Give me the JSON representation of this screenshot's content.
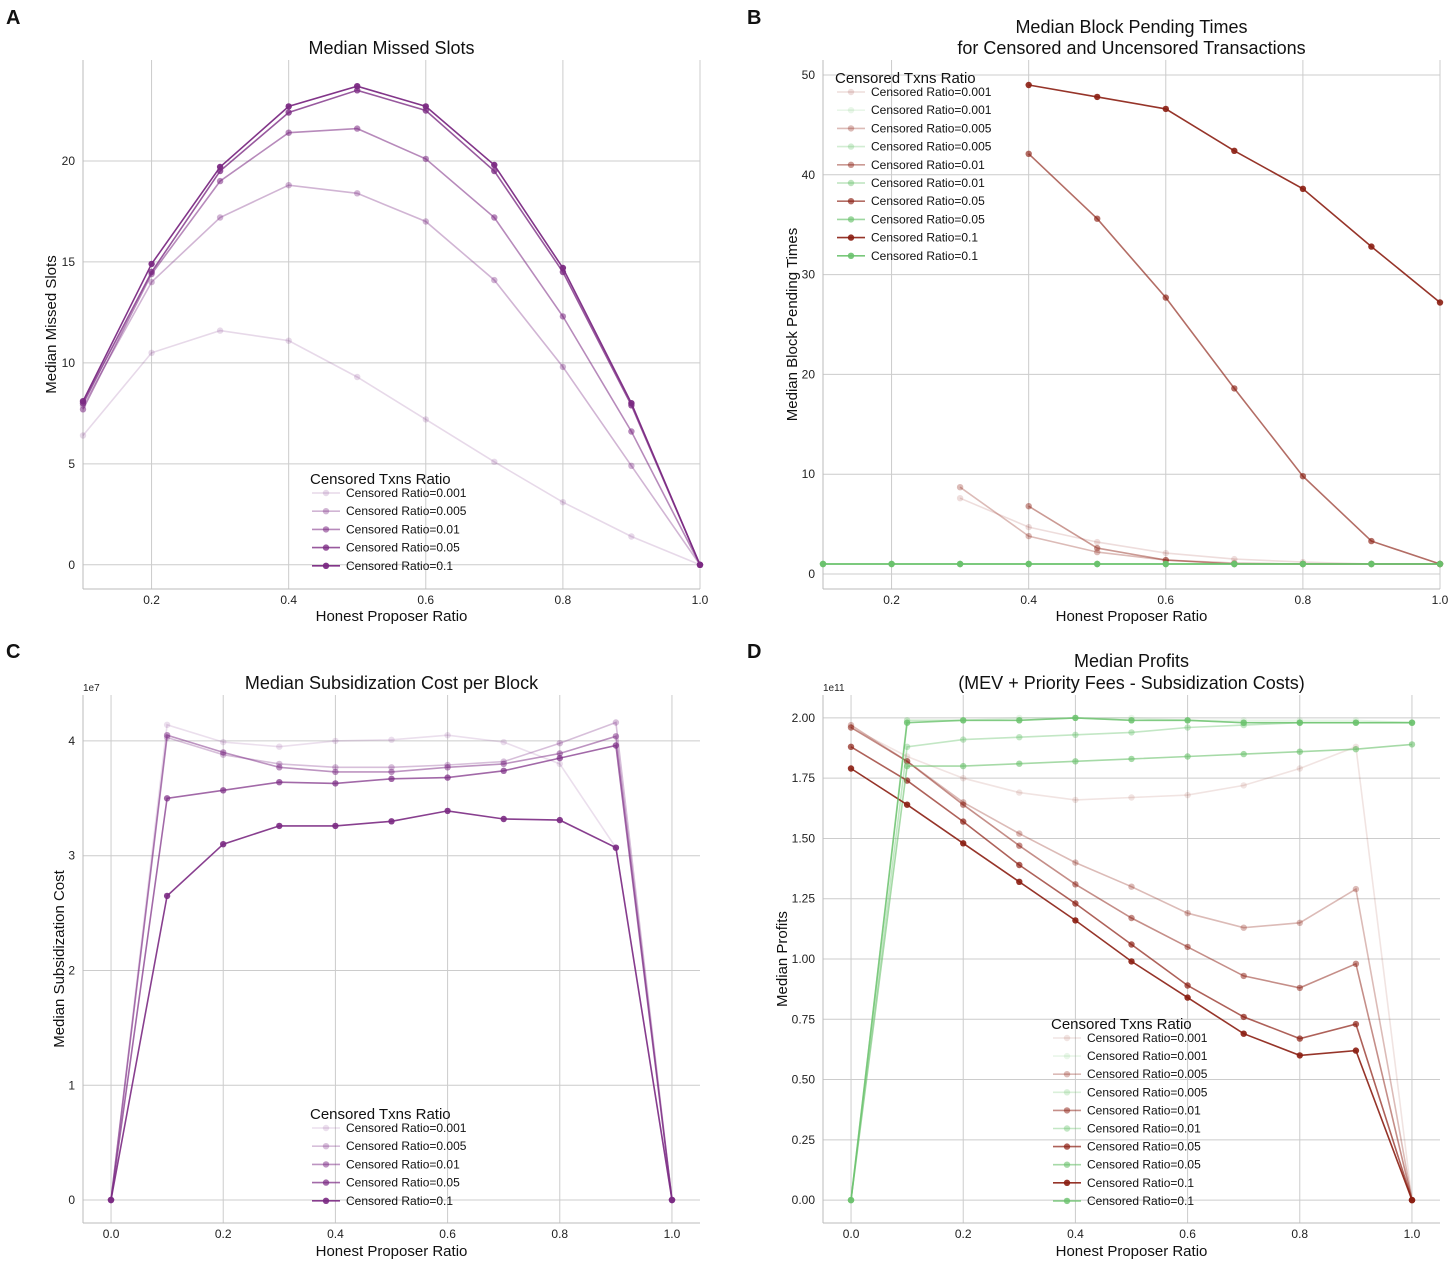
{
  "colors": {
    "purple": "#7b2a83",
    "red": "#8b1e12",
    "green": "#6ac26d"
  },
  "chart_data": [
    {
      "panel": "A",
      "type": "line",
      "title": [
        "Median Missed Slots"
      ],
      "xlabel": "Honest Proposer Ratio",
      "ylabel": "Median Missed Slots",
      "xlim": [
        0.1,
        1.0
      ],
      "ylim": [
        -1.2,
        25.0
      ],
      "xticks": [
        0.2,
        0.4,
        0.6,
        0.8,
        1.0
      ],
      "xtick_labels": [
        "0.2",
        "0.4",
        "0.6",
        "0.8",
        "1.0"
      ],
      "yticks": [
        0,
        5,
        10,
        15,
        20
      ],
      "ytick_labels": [
        "0",
        "5",
        "10",
        "15",
        "20"
      ],
      "exponent_label": "",
      "grid": true,
      "legend": {
        "title": "Censored Txns Ratio",
        "placement": "lower-center"
      },
      "x": [
        0.1,
        0.2,
        0.3,
        0.4,
        0.5,
        0.6,
        0.7,
        0.8,
        0.9,
        1.0
      ],
      "series": [
        {
          "name": "Censored Ratio=0.001",
          "color": "#7b2a83",
          "opacity": 0.18,
          "values": [
            6.4,
            10.5,
            11.6,
            11.1,
            9.3,
            7.2,
            5.1,
            3.1,
            1.4,
            0.0
          ]
        },
        {
          "name": "Censored Ratio=0.005",
          "color": "#7b2a83",
          "opacity": 0.35,
          "values": [
            7.9,
            14.0,
            17.2,
            18.8,
            18.4,
            17.0,
            14.1,
            9.8,
            4.9,
            0.0
          ]
        },
        {
          "name": "Censored Ratio=0.01",
          "color": "#7b2a83",
          "opacity": 0.55,
          "values": [
            7.7,
            14.4,
            19.0,
            21.4,
            21.6,
            20.1,
            17.2,
            12.3,
            6.6,
            0.0
          ]
        },
        {
          "name": "Censored Ratio=0.05",
          "color": "#7b2a83",
          "opacity": 0.78,
          "values": [
            8.0,
            14.5,
            19.5,
            22.4,
            23.5,
            22.5,
            19.5,
            14.5,
            7.9,
            0.0
          ]
        },
        {
          "name": "Censored Ratio=0.1",
          "color": "#7b2a83",
          "opacity": 0.95,
          "values": [
            8.1,
            14.9,
            19.7,
            22.7,
            23.7,
            22.7,
            19.8,
            14.7,
            8.0,
            0.0
          ]
        }
      ]
    },
    {
      "panel": "B",
      "type": "line",
      "title": [
        "Median Block Pending Times",
        "for Censored and Uncensored Transactions"
      ],
      "xlabel": "Honest Proposer Ratio",
      "ylabel": "Median Block Pending Times",
      "xlim": [
        0.1,
        1.0
      ],
      "ylim": [
        -1.5,
        51.5
      ],
      "xticks": [
        0.2,
        0.4,
        0.6,
        0.8,
        1.0
      ],
      "xtick_labels": [
        "0.2",
        "0.4",
        "0.6",
        "0.8",
        "1.0"
      ],
      "yticks": [
        0,
        10,
        20,
        30,
        40,
        50
      ],
      "ytick_labels": [
        "0",
        "10",
        "20",
        "30",
        "40",
        "50"
      ],
      "exponent_label": "",
      "grid": true,
      "legend": {
        "title": "Censored Txns Ratio",
        "placement": "upper-left"
      },
      "x": [
        0.1,
        0.2,
        0.3,
        0.4,
        0.5,
        0.6,
        0.7,
        0.8,
        0.9,
        1.0
      ],
      "series": [
        {
          "name": "Censored Ratio=0.001",
          "color": "#8b1e12",
          "opacity": 0.15,
          "values": [
            null,
            null,
            7.6,
            4.7,
            3.2,
            2.1,
            1.5,
            1.2,
            1.0,
            1.0
          ]
        },
        {
          "name": "Censored Ratio=0.001",
          "color": "#6ac26d",
          "opacity": 0.15,
          "values": [
            1.0,
            1.0,
            1.0,
            1.0,
            1.0,
            1.0,
            1.0,
            1.0,
            1.0,
            1.0
          ]
        },
        {
          "name": "Censored Ratio=0.005",
          "color": "#8b1e12",
          "opacity": 0.3,
          "values": [
            null,
            null,
            8.7,
            3.8,
            2.2,
            1.4,
            1.1,
            1.0,
            1.0,
            1.0
          ]
        },
        {
          "name": "Censored Ratio=0.005",
          "color": "#6ac26d",
          "opacity": 0.3,
          "values": [
            1.0,
            1.0,
            1.0,
            1.0,
            1.0,
            1.0,
            1.0,
            1.0,
            1.0,
            1.0
          ]
        },
        {
          "name": "Censored Ratio=0.01",
          "color": "#8b1e12",
          "opacity": 0.45,
          "values": [
            null,
            null,
            null,
            6.8,
            2.6,
            1.4,
            1.0,
            1.0,
            1.0,
            1.0
          ]
        },
        {
          "name": "Censored Ratio=0.01",
          "color": "#6ac26d",
          "opacity": 0.45,
          "values": [
            1.0,
            1.0,
            1.0,
            1.0,
            1.0,
            1.0,
            1.0,
            1.0,
            1.0,
            1.0
          ]
        },
        {
          "name": "Censored Ratio=0.05",
          "color": "#8b1e12",
          "opacity": 0.65,
          "values": [
            null,
            null,
            null,
            42.1,
            35.6,
            27.7,
            18.6,
            9.8,
            3.3,
            1.0
          ]
        },
        {
          "name": "Censored Ratio=0.05",
          "color": "#6ac26d",
          "opacity": 0.65,
          "values": [
            1.0,
            1.0,
            1.0,
            1.0,
            1.0,
            1.0,
            1.0,
            1.0,
            1.0,
            1.0
          ]
        },
        {
          "name": "Censored Ratio=0.1",
          "color": "#8b1e12",
          "opacity": 0.9,
          "values": [
            null,
            null,
            null,
            49.0,
            47.8,
            46.6,
            42.4,
            38.6,
            32.8,
            27.2
          ]
        },
        {
          "name": "Censored Ratio=0.1",
          "color": "#6ac26d",
          "opacity": 0.9,
          "values": [
            1.0,
            1.0,
            1.0,
            1.0,
            1.0,
            1.0,
            1.0,
            1.0,
            1.0,
            1.0
          ]
        }
      ]
    },
    {
      "panel": "C",
      "type": "line",
      "title": [
        "Median Subsidization Cost per Block"
      ],
      "xlabel": "Honest Proposer Ratio",
      "ylabel": "Median Subsidization Cost",
      "xlim": [
        -0.05,
        1.05
      ],
      "ylim": [
        -0.2,
        4.4
      ],
      "xticks": [
        0.0,
        0.2,
        0.4,
        0.6,
        0.8,
        1.0
      ],
      "xtick_labels": [
        "0.0",
        "0.2",
        "0.4",
        "0.6",
        "0.8",
        "1.0"
      ],
      "yticks": [
        0,
        1,
        2,
        3,
        4
      ],
      "ytick_labels": [
        "0",
        "1",
        "2",
        "3",
        "4"
      ],
      "exponent_label": "1e7",
      "grid": true,
      "legend": {
        "title": "Censored Txns Ratio",
        "placement": "lower-center"
      },
      "x": [
        0.0,
        0.1,
        0.2,
        0.3,
        0.4,
        0.5,
        0.6,
        0.7,
        0.8,
        0.9,
        1.0
      ],
      "series": [
        {
          "name": "Censored Ratio=0.001",
          "color": "#7b2a83",
          "opacity": 0.15,
          "values": [
            0.0,
            4.14,
            3.99,
            3.95,
            4.0,
            4.01,
            4.05,
            3.99,
            3.8,
            3.07,
            0.0
          ]
        },
        {
          "name": "Censored Ratio=0.005",
          "color": "#7b2a83",
          "opacity": 0.3,
          "values": [
            0.0,
            4.03,
            3.88,
            3.8,
            3.77,
            3.77,
            3.79,
            3.82,
            3.98,
            4.16,
            0.0
          ]
        },
        {
          "name": "Censored Ratio=0.01",
          "color": "#7b2a83",
          "opacity": 0.5,
          "values": [
            0.0,
            4.05,
            3.9,
            3.77,
            3.73,
            3.73,
            3.77,
            3.8,
            3.89,
            4.04,
            0.0
          ]
        },
        {
          "name": "Censored Ratio=0.05",
          "color": "#7b2a83",
          "opacity": 0.7,
          "values": [
            0.0,
            3.5,
            3.57,
            3.64,
            3.63,
            3.67,
            3.68,
            3.74,
            3.85,
            3.96,
            0.0
          ]
        },
        {
          "name": "Censored Ratio=0.1",
          "color": "#7b2a83",
          "opacity": 0.9,
          "values": [
            0.0,
            2.65,
            3.1,
            3.26,
            3.26,
            3.3,
            3.39,
            3.32,
            3.31,
            3.07,
            0.0
          ]
        }
      ]
    },
    {
      "panel": "D",
      "type": "line",
      "title": [
        "Median  Profits",
        "(MEV + Priority Fees - Subsidization Costs)"
      ],
      "xlabel": "Honest Proposer Ratio",
      "ylabel": "Median Profits",
      "xlim": [
        -0.05,
        1.05
      ],
      "ylim": [
        -0.095,
        2.095
      ],
      "xticks": [
        0.0,
        0.2,
        0.4,
        0.6,
        0.8,
        1.0
      ],
      "xtick_labels": [
        "0.0",
        "0.2",
        "0.4",
        "0.6",
        "0.8",
        "1.0"
      ],
      "yticks": [
        0.0,
        0.25,
        0.5,
        0.75,
        1.0,
        1.25,
        1.5,
        1.75,
        2.0
      ],
      "ytick_labels": [
        "0.00",
        "0.25",
        "0.50",
        "0.75",
        "1.00",
        "1.25",
        "1.50",
        "1.75",
        "2.00"
      ],
      "exponent_label": "1e11",
      "grid": true,
      "legend": {
        "title": "Censored Txns Ratio",
        "placement": "lower-center"
      },
      "x": [
        0.0,
        0.1,
        0.2,
        0.3,
        0.4,
        0.5,
        0.6,
        0.7,
        0.8,
        0.9,
        1.0
      ],
      "series": [
        {
          "name": "Censored Ratio=0.001",
          "color": "#8b1e12",
          "opacity": 0.12,
          "values": [
            1.96,
            1.84,
            1.75,
            1.69,
            1.66,
            1.67,
            1.68,
            1.72,
            1.79,
            1.88,
            0.0
          ]
        },
        {
          "name": "Censored Ratio=0.001",
          "color": "#6ac26d",
          "opacity": 0.15,
          "values": [
            0.0,
            1.99,
            1.99,
            2.0,
            2.0,
            2.0,
            1.99,
            1.99,
            1.99,
            1.99,
            1.98
          ]
        },
        {
          "name": "Censored Ratio=0.005",
          "color": "#8b1e12",
          "opacity": 0.3,
          "values": [
            1.97,
            1.82,
            1.65,
            1.52,
            1.4,
            1.3,
            1.19,
            1.13,
            1.15,
            1.29,
            0.0
          ]
        },
        {
          "name": "Censored Ratio=0.005",
          "color": "#6ac26d",
          "opacity": 0.25,
          "values": [
            0.0,
            1.99,
            1.99,
            1.99,
            2.0,
            1.99,
            1.99,
            1.98,
            1.98,
            1.98,
            1.98
          ]
        },
        {
          "name": "Censored Ratio=0.01",
          "color": "#8b1e12",
          "opacity": 0.5,
          "values": [
            1.96,
            1.82,
            1.64,
            1.47,
            1.31,
            1.17,
            1.05,
            0.93,
            0.88,
            0.98,
            0.0
          ]
        },
        {
          "name": "Censored Ratio=0.01",
          "color": "#6ac26d",
          "opacity": 0.4,
          "values": [
            0.0,
            1.88,
            1.91,
            1.92,
            1.93,
            1.94,
            1.96,
            1.97,
            1.98,
            1.98,
            1.98
          ]
        },
        {
          "name": "Censored Ratio=0.05",
          "color": "#8b1e12",
          "opacity": 0.7,
          "values": [
            1.88,
            1.74,
            1.57,
            1.39,
            1.23,
            1.06,
            0.89,
            0.76,
            0.67,
            0.73,
            0.0
          ]
        },
        {
          "name": "Censored Ratio=0.05",
          "color": "#6ac26d",
          "opacity": 0.6,
          "values": [
            0.0,
            1.8,
            1.8,
            1.81,
            1.82,
            1.83,
            1.84,
            1.85,
            1.86,
            1.87,
            1.89
          ]
        },
        {
          "name": "Censored Ratio=0.1",
          "color": "#8b1e12",
          "opacity": 0.9,
          "values": [
            1.79,
            1.64,
            1.48,
            1.32,
            1.16,
            0.99,
            0.84,
            0.69,
            0.6,
            0.62,
            0.0
          ]
        },
        {
          "name": "Censored Ratio=0.1",
          "color": "#6ac26d",
          "opacity": 0.8,
          "values": [
            0.0,
            1.98,
            1.99,
            1.99,
            2.0,
            1.99,
            1.99,
            1.98,
            1.98,
            1.98,
            1.98
          ]
        }
      ]
    }
  ]
}
